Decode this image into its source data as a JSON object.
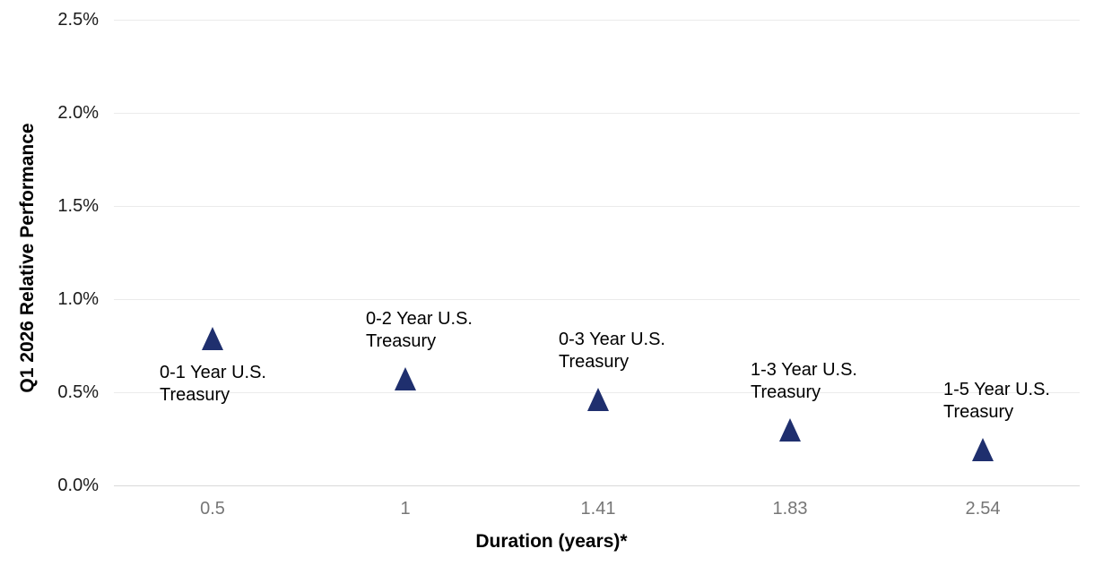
{
  "chart_data": {
    "type": "scatter",
    "title": "",
    "xlabel": "Duration (years)*",
    "ylabel": "Q1 2026 Relative Performance",
    "x_scale": "categorical-equal-spacing",
    "grid": "horizontal-only",
    "legend": "none",
    "marker": {
      "shape": "triangle-up",
      "color": "#1f2f6e"
    },
    "y_axis": {
      "ticks": [
        "2.5%",
        "2.0%",
        "1.5%",
        "1.0%",
        "0.5%",
        "0.0%"
      ],
      "min": 0,
      "max": 2.5,
      "unit": "%"
    },
    "x_tick_labels": [
      "0.5",
      "1",
      "1.41",
      "1.83",
      "2.54"
    ],
    "points": [
      {
        "name": "0-1 Year U.S. Treasury",
        "label_lines": [
          "0-1 Year U.S.",
          "Treasury"
        ],
        "x": 0.5,
        "y": 0.79,
        "label_position": "below"
      },
      {
        "name": "0-2 Year U.S. Treasury",
        "label_lines": [
          "0-2 Year U.S.",
          "Treasury"
        ],
        "x": 1,
        "y": 0.57,
        "label_position": "above"
      },
      {
        "name": "0-3 Year U.S. Treasury",
        "label_lines": [
          "0-3 Year U.S.",
          "Treasury"
        ],
        "x": 1.41,
        "y": 0.46,
        "label_position": "above"
      },
      {
        "name": "1-3 Year U.S. Treasury",
        "label_lines": [
          "1-3 Year U.S.",
          "Treasury"
        ],
        "x": 1.83,
        "y": 0.3,
        "label_position": "above"
      },
      {
        "name": "1-5 Year U.S. Treasury",
        "label_lines": [
          "1-5 Year U.S.",
          "Treasury"
        ],
        "x": 2.54,
        "y": 0.19,
        "label_position": "above"
      }
    ],
    "colors": {
      "marker": "#1f2f6e",
      "gridline": "#ebebeb",
      "axis_line": "#d9d9d9",
      "y_tick_text": "#1a1a1a",
      "x_tick_text": "#767676",
      "label_text": "#000000",
      "background": "#ffffff"
    }
  }
}
